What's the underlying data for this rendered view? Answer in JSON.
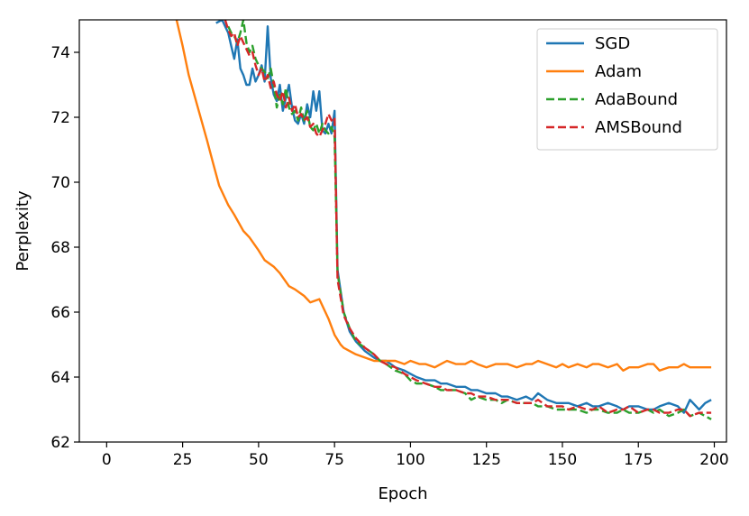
{
  "chart_data": {
    "type": "line",
    "title": "",
    "xlabel": "Epoch",
    "ylabel": "Perplexity",
    "xlim": [
      -9,
      204
    ],
    "ylim": [
      62,
      75
    ],
    "xticks": [
      0,
      25,
      50,
      75,
      100,
      125,
      150,
      175,
      200
    ],
    "yticks": [
      62,
      64,
      66,
      68,
      70,
      72,
      74
    ],
    "grid": false,
    "legend_position": "top-right",
    "series": [
      {
        "name": "SGD",
        "color": "#1f77b4",
        "dash": "solid",
        "x": [
          36,
          38,
          40,
          41,
          42,
          43,
          44,
          45,
          46,
          47,
          48,
          49,
          50,
          51,
          52,
          53,
          54,
          55,
          56,
          57,
          58,
          59,
          60,
          61,
          62,
          63,
          64,
          65,
          66,
          67,
          68,
          69,
          70,
          71,
          72,
          73,
          74,
          75,
          76,
          78,
          80,
          82,
          85,
          88,
          90,
          92,
          95,
          98,
          100,
          102,
          105,
          108,
          110,
          112,
          115,
          118,
          120,
          122,
          125,
          128,
          130,
          132,
          135,
          138,
          140,
          142,
          145,
          148,
          150,
          152,
          155,
          158,
          160,
          162,
          165,
          168,
          170,
          172,
          175,
          178,
          180,
          182,
          185,
          188,
          190,
          192,
          195,
          197,
          199
        ],
        "y": [
          74.9,
          75.0,
          74.6,
          74.2,
          73.8,
          74.4,
          73.5,
          73.3,
          73.0,
          73.0,
          73.5,
          73.1,
          73.3,
          73.6,
          73.1,
          74.8,
          73.2,
          72.7,
          72.5,
          73.0,
          72.2,
          72.6,
          73.0,
          72.3,
          71.9,
          71.8,
          72.1,
          71.8,
          72.4,
          72.0,
          72.8,
          72.2,
          72.8,
          71.6,
          71.5,
          71.8,
          71.5,
          72.2,
          67.3,
          66.0,
          65.4,
          65.1,
          64.8,
          64.6,
          64.5,
          64.5,
          64.3,
          64.2,
          64.1,
          64.0,
          63.9,
          63.9,
          63.8,
          63.8,
          63.7,
          63.7,
          63.6,
          63.6,
          63.5,
          63.5,
          63.4,
          63.4,
          63.3,
          63.4,
          63.3,
          63.5,
          63.3,
          63.2,
          63.2,
          63.2,
          63.1,
          63.2,
          63.1,
          63.1,
          63.2,
          63.1,
          63.0,
          63.1,
          63.1,
          63.0,
          63.0,
          63.1,
          63.2,
          63.1,
          62.9,
          63.3,
          63.0,
          63.2,
          63.3
        ]
      },
      {
        "name": "Adam",
        "color": "#ff7f0e",
        "dash": "solid",
        "x": [
          23,
          25,
          27,
          30,
          33,
          35,
          37,
          40,
          42,
          45,
          47,
          50,
          52,
          55,
          57,
          60,
          62,
          65,
          67,
          70,
          72,
          73,
          75,
          77,
          78,
          80,
          82,
          85,
          88,
          90,
          92,
          95,
          98,
          100,
          103,
          105,
          108,
          110,
          112,
          115,
          118,
          120,
          122,
          125,
          128,
          130,
          132,
          135,
          138,
          140,
          142,
          145,
          148,
          150,
          152,
          155,
          158,
          160,
          162,
          165,
          168,
          170,
          172,
          175,
          178,
          180,
          182,
          185,
          188,
          190,
          192,
          195,
          197,
          199
        ],
        "y": [
          75.0,
          74.2,
          73.3,
          72.3,
          71.3,
          70.6,
          69.9,
          69.3,
          69.0,
          68.5,
          68.3,
          67.9,
          67.6,
          67.4,
          67.2,
          66.8,
          66.7,
          66.5,
          66.3,
          66.4,
          66.0,
          65.8,
          65.3,
          65.0,
          64.9,
          64.8,
          64.7,
          64.6,
          64.5,
          64.5,
          64.5,
          64.5,
          64.4,
          64.5,
          64.4,
          64.4,
          64.3,
          64.4,
          64.5,
          64.4,
          64.4,
          64.5,
          64.4,
          64.3,
          64.4,
          64.4,
          64.4,
          64.3,
          64.4,
          64.4,
          64.5,
          64.4,
          64.3,
          64.4,
          64.3,
          64.4,
          64.3,
          64.4,
          64.4,
          64.3,
          64.4,
          64.2,
          64.3,
          64.3,
          64.4,
          64.4,
          64.2,
          64.3,
          64.3,
          64.4,
          64.3,
          64.3,
          64.3,
          64.3
        ]
      },
      {
        "name": "AdaBound",
        "color": "#2ca02c",
        "dash": "dashed",
        "x": [
          40,
          41,
          42,
          43,
          44,
          45,
          46,
          47,
          48,
          49,
          50,
          51,
          52,
          53,
          54,
          55,
          56,
          57,
          58,
          59,
          60,
          61,
          62,
          63,
          64,
          65,
          66,
          67,
          68,
          69,
          70,
          71,
          72,
          73,
          74,
          75,
          76,
          78,
          80,
          82,
          85,
          88,
          90,
          92,
          95,
          98,
          100,
          102,
          105,
          108,
          110,
          112,
          115,
          118,
          120,
          122,
          125,
          128,
          130,
          132,
          135,
          138,
          140,
          142,
          145,
          148,
          150,
          152,
          155,
          158,
          160,
          162,
          165,
          168,
          170,
          172,
          175,
          178,
          180,
          182,
          185,
          188,
          190,
          192,
          195,
          197,
          199
        ],
        "y": [
          74.8,
          74.6,
          74.5,
          74.3,
          74.6,
          75.0,
          74.3,
          74.0,
          74.2,
          73.8,
          73.6,
          73.5,
          73.4,
          73.2,
          73.5,
          73.0,
          72.3,
          72.7,
          72.4,
          72.9,
          72.3,
          72.1,
          72.2,
          71.9,
          72.3,
          71.9,
          72.2,
          71.7,
          71.6,
          71.8,
          71.5,
          71.8,
          71.6,
          71.5,
          71.7,
          71.4,
          67.2,
          66.0,
          65.5,
          65.1,
          64.9,
          64.7,
          64.5,
          64.4,
          64.2,
          64.1,
          63.9,
          63.8,
          63.8,
          63.7,
          63.6,
          63.6,
          63.6,
          63.5,
          63.3,
          63.4,
          63.3,
          63.3,
          63.2,
          63.3,
          63.2,
          63.2,
          63.2,
          63.1,
          63.1,
          63.0,
          63.0,
          63.0,
          63.0,
          62.9,
          63.0,
          63.0,
          62.9,
          62.9,
          63.0,
          62.9,
          62.9,
          63.0,
          62.9,
          63.0,
          62.8,
          62.9,
          63.0,
          62.8,
          62.9,
          62.8,
          62.7
        ]
      },
      {
        "name": "AMSBound",
        "color": "#d62728",
        "dash": "dashed",
        "x": [
          39,
          40,
          41,
          42,
          43,
          44,
          45,
          46,
          47,
          48,
          49,
          50,
          51,
          52,
          53,
          54,
          55,
          56,
          57,
          58,
          59,
          60,
          61,
          62,
          63,
          64,
          65,
          66,
          67,
          68,
          69,
          70,
          71,
          72,
          73,
          74,
          75,
          76,
          78,
          80,
          82,
          85,
          88,
          90,
          92,
          95,
          98,
          100,
          102,
          105,
          108,
          110,
          112,
          115,
          118,
          120,
          122,
          125,
          128,
          130,
          132,
          135,
          138,
          140,
          142,
          145,
          148,
          150,
          152,
          155,
          158,
          160,
          162,
          165,
          168,
          170,
          172,
          175,
          178,
          180,
          182,
          185,
          188,
          190,
          192,
          195,
          197,
          199
        ],
        "y": [
          75.0,
          74.7,
          74.5,
          74.6,
          74.2,
          74.5,
          74.3,
          74.1,
          73.9,
          74.0,
          73.6,
          73.3,
          73.5,
          73.1,
          73.3,
          72.9,
          73.1,
          72.7,
          72.5,
          72.8,
          72.3,
          72.6,
          72.2,
          72.4,
          72.0,
          72.1,
          71.9,
          72.0,
          71.7,
          71.8,
          71.5,
          71.4,
          71.6,
          71.8,
          72.1,
          71.9,
          72.0,
          67.0,
          65.9,
          65.5,
          65.2,
          64.9,
          64.7,
          64.5,
          64.4,
          64.3,
          64.1,
          64.0,
          63.9,
          63.8,
          63.7,
          63.7,
          63.6,
          63.6,
          63.5,
          63.5,
          63.4,
          63.4,
          63.3,
          63.3,
          63.3,
          63.2,
          63.2,
          63.2,
          63.3,
          63.1,
          63.1,
          63.1,
          63.0,
          63.1,
          63.0,
          63.0,
          63.1,
          62.9,
          63.0,
          63.0,
          63.1,
          62.9,
          63.0,
          63.0,
          62.9,
          62.9,
          63.0,
          63.0,
          62.8,
          62.9,
          62.9,
          62.9
        ]
      }
    ]
  }
}
